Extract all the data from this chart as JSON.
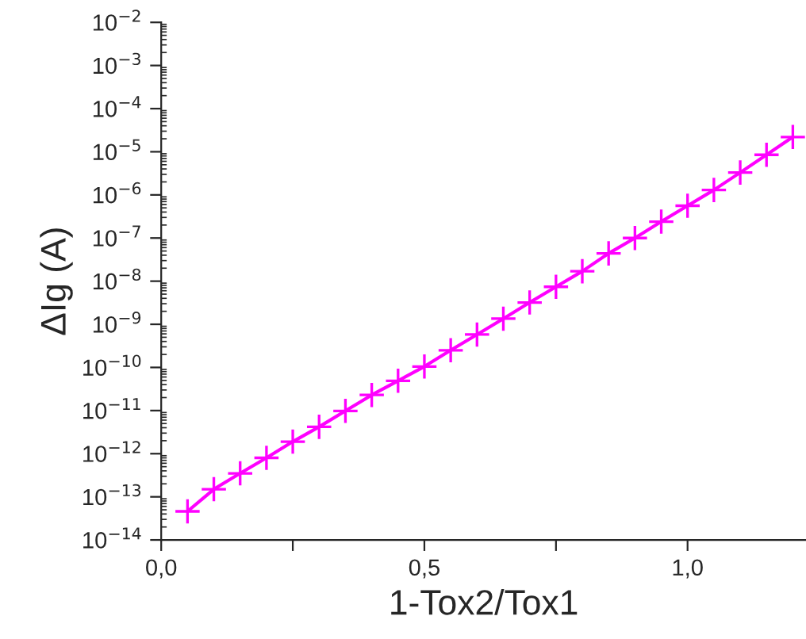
{
  "chart_data": {
    "type": "line",
    "xlabel": "1-Tox2/Tox1",
    "ylabel": "ΔIg (A)",
    "log": "y",
    "grid": false,
    "marker": "cross",
    "line_style": "solid",
    "x": [
      0.05,
      0.1,
      0.15,
      0.2,
      0.25,
      0.3,
      0.35,
      0.4,
      0.45,
      0.5,
      0.55,
      0.6,
      0.65,
      0.7,
      0.75,
      0.8,
      0.85,
      0.9,
      0.95,
      1.0,
      1.05,
      1.1,
      1.15,
      1.2
    ],
    "series": [
      {
        "color": "#ff00ff",
        "values": [
          4.6e-14,
          1.5e-13,
          3.5e-13,
          8e-13,
          1.9e-12,
          4.2e-12,
          9.8e-12,
          2.3e-11,
          4.9e-11,
          1.05e-10,
          2.5e-10,
          5.8e-10,
          1.35e-09,
          3.2e-09,
          7.4e-09,
          1.7e-08,
          4.4e-08,
          1e-07,
          2.4e-07,
          5.6e-07,
          1.3e-06,
          3.3e-06,
          8.5e-06,
          2.2e-05
        ]
      }
    ],
    "xlim": [
      0,
      1.225
    ],
    "xticks": [
      {
        "value": 0,
        "label": "0,0"
      },
      {
        "value": 0.25,
        "label": null
      },
      {
        "value": 0.5,
        "label": "0,5"
      },
      {
        "value": 0.75,
        "label": null
      },
      {
        "value": 1.0,
        "label": "1,0"
      }
    ],
    "ylim": [
      1e-14,
      0.01
    ],
    "yticks": [
      {
        "value": 1e-14,
        "label": "10$^{−14}$"
      },
      {
        "value": 1e-13,
        "label": "10$^{−13}$"
      },
      {
        "value": 1e-12,
        "label": "10$^{−12}$"
      },
      {
        "value": 1e-11,
        "label": "10$^{−11}$"
      },
      {
        "value": 1e-10,
        "label": "10$^{−10}$"
      },
      {
        "value": 1e-09,
        "label": "10$^{−9}$"
      },
      {
        "value": 1e-08,
        "label": "10$^{−8}$"
      },
      {
        "value": 1e-07,
        "label": "10$^{−7}$"
      },
      {
        "value": 1e-06,
        "label": "10$^{−6}$"
      },
      {
        "value": 1e-05,
        "label": "10$^{−5}$"
      },
      {
        "value": 0.0001,
        "label": "10$^{−4}$"
      },
      {
        "value": 0.001,
        "label": "10$^{−3}$"
      },
      {
        "value": 0.01,
        "label": "10$^{−2}$"
      }
    ]
  }
}
